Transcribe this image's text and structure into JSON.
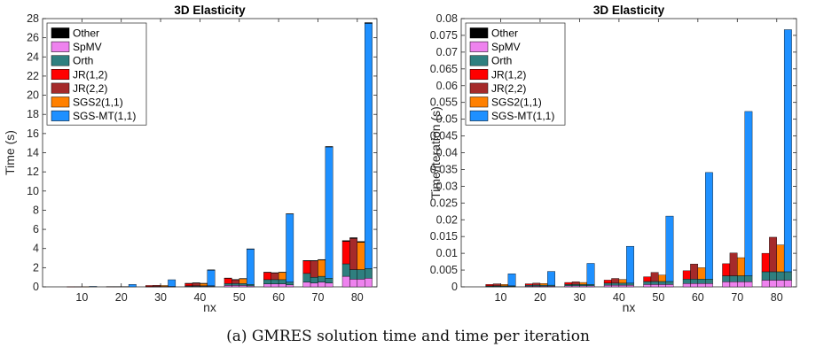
{
  "caption": "(a) GMRES solution time and time per iteration",
  "colors": {
    "Other": "#000000",
    "SpMV": "#ee82ee",
    "Orth": "#2f7f7f",
    "JR(1,2)": "#ff0000",
    "JR(2,2)": "#a52a2a",
    "SGS2(1,1)": "#ff8000",
    "SGS-MT(1,1)": "#1e90ff"
  },
  "chart_data": [
    {
      "type": "bar",
      "subtype": "stacked-grouped",
      "title": "3D Elasticity",
      "xlabel": "nx",
      "ylabel": "Time (s)",
      "ylim": [
        0,
        28
      ],
      "yticks": [
        "0",
        "2",
        "4",
        "6",
        "8",
        "10",
        "12",
        "14",
        "16",
        "18",
        "20",
        "22",
        "24",
        "26",
        "28"
      ],
      "categories": [
        "10",
        "20",
        "30",
        "40",
        "50",
        "60",
        "70",
        "80"
      ],
      "solvers": [
        "JR(1,2)",
        "JR(2,2)",
        "SGS2(1,1)",
        "SGS-MT(1,1)"
      ],
      "legend": [
        "Other",
        "SpMV",
        "Orth",
        "JR(1,2)",
        "JR(2,2)",
        "SGS2(1,1)",
        "SGS-MT(1,1)"
      ],
      "legend_position": "top-left",
      "grid": false,
      "groups": [
        {
          "x": "10",
          "bars": [
            {
              "solver": "JR(1,2)",
              "SpMV": 0.0,
              "Orth": 0.0,
              "Precond": 0.01,
              "Other": 0.0
            },
            {
              "solver": "JR(2,2)",
              "SpMV": 0.0,
              "Orth": 0.0,
              "Precond": 0.01,
              "Other": 0.0
            },
            {
              "solver": "SGS2(1,1)",
              "SpMV": 0.0,
              "Orth": 0.0,
              "Precond": 0.01,
              "Other": 0.0
            },
            {
              "solver": "SGS-MT(1,1)",
              "SpMV": 0.0,
              "Orth": 0.0,
              "Precond": 0.05,
              "Other": 0.0
            }
          ]
        },
        {
          "x": "20",
          "bars": [
            {
              "solver": "JR(1,2)",
              "SpMV": 0.0,
              "Orth": 0.0,
              "Precond": 0.03,
              "Other": 0.0
            },
            {
              "solver": "JR(2,2)",
              "SpMV": 0.0,
              "Orth": 0.0,
              "Precond": 0.03,
              "Other": 0.0
            },
            {
              "solver": "SGS2(1,1)",
              "SpMV": 0.0,
              "Orth": 0.0,
              "Precond": 0.03,
              "Other": 0.0
            },
            {
              "solver": "SGS-MT(1,1)",
              "SpMV": 0.0,
              "Orth": 0.0,
              "Precond": 0.25,
              "Other": 0.0
            }
          ]
        },
        {
          "x": "30",
          "bars": [
            {
              "solver": "JR(1,2)",
              "SpMV": 0.02,
              "Orth": 0.02,
              "Precond": 0.1,
              "Other": 0.0
            },
            {
              "solver": "JR(2,2)",
              "SpMV": 0.02,
              "Orth": 0.02,
              "Precond": 0.12,
              "Other": 0.0
            },
            {
              "solver": "SGS2(1,1)",
              "SpMV": 0.02,
              "Orth": 0.02,
              "Precond": 0.1,
              "Other": 0.0
            },
            {
              "solver": "SGS-MT(1,1)",
              "SpMV": 0.02,
              "Orth": 0.02,
              "Precond": 0.7,
              "Other": 0.0
            }
          ]
        },
        {
          "x": "40",
          "bars": [
            {
              "solver": "JR(1,2)",
              "SpMV": 0.05,
              "Orth": 0.06,
              "Precond": 0.25,
              "Other": 0.01
            },
            {
              "solver": "JR(2,2)",
              "SpMV": 0.05,
              "Orth": 0.06,
              "Precond": 0.3,
              "Other": 0.01
            },
            {
              "solver": "SGS2(1,1)",
              "SpMV": 0.05,
              "Orth": 0.06,
              "Precond": 0.25,
              "Other": 0.01
            },
            {
              "solver": "SGS-MT(1,1)",
              "SpMV": 0.05,
              "Orth": 0.06,
              "Precond": 1.65,
              "Other": 0.01
            }
          ]
        },
        {
          "x": "50",
          "bars": [
            {
              "solver": "JR(1,2)",
              "SpMV": 0.15,
              "Orth": 0.2,
              "Precond": 0.55,
              "Other": 0.02
            },
            {
              "solver": "JR(2,2)",
              "SpMV": 0.15,
              "Orth": 0.2,
              "Precond": 0.4,
              "Other": 0.02
            },
            {
              "solver": "SGS2(1,1)",
              "SpMV": 0.15,
              "Orth": 0.2,
              "Precond": 0.5,
              "Other": 0.02
            },
            {
              "solver": "SGS-MT(1,1)",
              "SpMV": 0.1,
              "Orth": 0.15,
              "Precond": 3.7,
              "Other": 0.02
            }
          ]
        },
        {
          "x": "60",
          "bars": [
            {
              "solver": "JR(1,2)",
              "SpMV": 0.3,
              "Orth": 0.45,
              "Precond": 0.75,
              "Other": 0.03
            },
            {
              "solver": "JR(2,2)",
              "SpMV": 0.3,
              "Orth": 0.45,
              "Precond": 0.7,
              "Other": 0.03
            },
            {
              "solver": "SGS2(1,1)",
              "SpMV": 0.3,
              "Orth": 0.45,
              "Precond": 0.75,
              "Other": 0.03
            },
            {
              "solver": "SGS-MT(1,1)",
              "SpMV": 0.2,
              "Orth": 0.3,
              "Precond": 7.1,
              "Other": 0.03
            }
          ]
        },
        {
          "x": "70",
          "bars": [
            {
              "solver": "JR(1,2)",
              "SpMV": 0.5,
              "Orth": 0.9,
              "Precond": 1.3,
              "Other": 0.05
            },
            {
              "solver": "JR(2,2)",
              "SpMV": 0.4,
              "Orth": 0.6,
              "Precond": 1.7,
              "Other": 0.05
            },
            {
              "solver": "SGS2(1,1)",
              "SpMV": 0.5,
              "Orth": 0.6,
              "Precond": 1.7,
              "Other": 0.05
            },
            {
              "solver": "SGS-MT(1,1)",
              "SpMV": 0.4,
              "Orth": 0.5,
              "Precond": 13.7,
              "Other": 0.05
            }
          ]
        },
        {
          "x": "80",
          "bars": [
            {
              "solver": "JR(1,2)",
              "SpMV": 1.1,
              "Orth": 1.3,
              "Precond": 2.35,
              "Other": 0.08
            },
            {
              "solver": "JR(2,2)",
              "SpMV": 0.8,
              "Orth": 1.0,
              "Precond": 3.25,
              "Other": 0.08
            },
            {
              "solver": "SGS2(1,1)",
              "SpMV": 0.8,
              "Orth": 1.0,
              "Precond": 2.85,
              "Other": 0.08
            },
            {
              "solver": "SGS-MT(1,1)",
              "SpMV": 0.9,
              "Orth": 1.0,
              "Precond": 25.6,
              "Other": 0.08
            }
          ]
        }
      ]
    },
    {
      "type": "bar",
      "subtype": "stacked-grouped",
      "title": "3D Elasticity",
      "xlabel": "nx",
      "ylabel": "Time/iteration (s)",
      "ylim": [
        0,
        0.08
      ],
      "yticks": [
        "0",
        "0.005",
        "0.01",
        "0.015",
        "0.02",
        "0.025",
        "0.03",
        "0.035",
        "0.04",
        "0.045",
        "0.05",
        "0.055",
        "0.06",
        "0.065",
        "0.07",
        "0.075",
        "0.08"
      ],
      "categories": [
        "10",
        "20",
        "30",
        "40",
        "50",
        "60",
        "70",
        "80"
      ],
      "solvers": [
        "JR(1,2)",
        "JR(2,2)",
        "SGS2(1,1)",
        "SGS-MT(1,1)"
      ],
      "legend": [
        "Other",
        "SpMV",
        "Orth",
        "JR(1,2)",
        "JR(2,2)",
        "SGS2(1,1)",
        "SGS-MT(1,1)"
      ],
      "legend_position": "top-left",
      "grid": false,
      "groups": [
        {
          "x": "10",
          "bars": [
            {
              "solver": "JR(1,2)",
              "SpMV": 0.0001,
              "Orth": 0.0002,
              "Precond": 0.0004,
              "Other": 0.0
            },
            {
              "solver": "JR(2,2)",
              "SpMV": 0.0001,
              "Orth": 0.0002,
              "Precond": 0.0006,
              "Other": 0.0
            },
            {
              "solver": "SGS2(1,1)",
              "SpMV": 0.0001,
              "Orth": 0.0002,
              "Precond": 0.0004,
              "Other": 0.0
            },
            {
              "solver": "SGS-MT(1,1)",
              "SpMV": 0.0001,
              "Orth": 0.0002,
              "Precond": 0.0036,
              "Other": 0.0
            }
          ]
        },
        {
          "x": "20",
          "bars": [
            {
              "solver": "JR(1,2)",
              "SpMV": 0.0002,
              "Orth": 0.0003,
              "Precond": 0.0004,
              "Other": 0.0
            },
            {
              "solver": "JR(2,2)",
              "SpMV": 0.0002,
              "Orth": 0.0003,
              "Precond": 0.0006,
              "Other": 0.0
            },
            {
              "solver": "SGS2(1,1)",
              "SpMV": 0.0002,
              "Orth": 0.0003,
              "Precond": 0.0005,
              "Other": 0.0
            },
            {
              "solver": "SGS-MT(1,1)",
              "SpMV": 0.0002,
              "Orth": 0.0003,
              "Precond": 0.0041,
              "Other": 0.0
            }
          ]
        },
        {
          "x": "30",
          "bars": [
            {
              "solver": "JR(1,2)",
              "SpMV": 0.0003,
              "Orth": 0.0004,
              "Precond": 0.0006,
              "Other": 0.0
            },
            {
              "solver": "JR(2,2)",
              "SpMV": 0.0003,
              "Orth": 0.0004,
              "Precond": 0.0008,
              "Other": 0.0
            },
            {
              "solver": "SGS2(1,1)",
              "SpMV": 0.0003,
              "Orth": 0.0004,
              "Precond": 0.0006,
              "Other": 0.0
            },
            {
              "solver": "SGS-MT(1,1)",
              "SpMV": 0.0003,
              "Orth": 0.0004,
              "Precond": 0.0063,
              "Other": 0.0
            }
          ]
        },
        {
          "x": "40",
          "bars": [
            {
              "solver": "JR(1,2)",
              "SpMV": 0.0005,
              "Orth": 0.0006,
              "Precond": 0.0009,
              "Other": 0.0
            },
            {
              "solver": "JR(2,2)",
              "SpMV": 0.0005,
              "Orth": 0.0006,
              "Precond": 0.0014,
              "Other": 0.0
            },
            {
              "solver": "SGS2(1,1)",
              "SpMV": 0.0005,
              "Orth": 0.0006,
              "Precond": 0.0011,
              "Other": 0.0
            },
            {
              "solver": "SGS-MT(1,1)",
              "SpMV": 0.0005,
              "Orth": 0.0006,
              "Precond": 0.011,
              "Other": 0.0
            }
          ]
        },
        {
          "x": "50",
          "bars": [
            {
              "solver": "JR(1,2)",
              "SpMV": 0.0007,
              "Orth": 0.0009,
              "Precond": 0.0014,
              "Other": 0.0
            },
            {
              "solver": "JR(2,2)",
              "SpMV": 0.0007,
              "Orth": 0.0009,
              "Precond": 0.0027,
              "Other": 0.0
            },
            {
              "solver": "SGS2(1,1)",
              "SpMV": 0.0007,
              "Orth": 0.0009,
              "Precond": 0.0019,
              "Other": 0.0
            },
            {
              "solver": "SGS-MT(1,1)",
              "SpMV": 0.0007,
              "Orth": 0.0009,
              "Precond": 0.0195,
              "Other": 0.0
            }
          ]
        },
        {
          "x": "60",
          "bars": [
            {
              "solver": "JR(1,2)",
              "SpMV": 0.001,
              "Orth": 0.0013,
              "Precond": 0.0025,
              "Other": 0.0
            },
            {
              "solver": "JR(2,2)",
              "SpMV": 0.001,
              "Orth": 0.0013,
              "Precond": 0.0045,
              "Other": 0.0
            },
            {
              "solver": "SGS2(1,1)",
              "SpMV": 0.001,
              "Orth": 0.0013,
              "Precond": 0.0034,
              "Other": 0.0
            },
            {
              "solver": "SGS-MT(1,1)",
              "SpMV": 0.001,
              "Orth": 0.0013,
              "Precond": 0.0318,
              "Other": 0.0
            }
          ]
        },
        {
          "x": "70",
          "bars": [
            {
              "solver": "JR(1,2)",
              "SpMV": 0.0015,
              "Orth": 0.0018,
              "Precond": 0.0036,
              "Other": 0.0
            },
            {
              "solver": "JR(2,2)",
              "SpMV": 0.0015,
              "Orth": 0.0018,
              "Precond": 0.0068,
              "Other": 0.0
            },
            {
              "solver": "SGS2(1,1)",
              "SpMV": 0.0015,
              "Orth": 0.0018,
              "Precond": 0.0054,
              "Other": 0.0
            },
            {
              "solver": "SGS-MT(1,1)",
              "SpMV": 0.0015,
              "Orth": 0.0018,
              "Precond": 0.049,
              "Other": 0.0
            }
          ]
        },
        {
          "x": "80",
          "bars": [
            {
              "solver": "JR(1,2)",
              "SpMV": 0.002,
              "Orth": 0.0025,
              "Precond": 0.0055,
              "Other": 0.0
            },
            {
              "solver": "JR(2,2)",
              "SpMV": 0.002,
              "Orth": 0.0025,
              "Precond": 0.0103,
              "Other": 0.0
            },
            {
              "solver": "SGS2(1,1)",
              "SpMV": 0.002,
              "Orth": 0.0025,
              "Precond": 0.008,
              "Other": 0.0
            },
            {
              "solver": "SGS-MT(1,1)",
              "SpMV": 0.002,
              "Orth": 0.0025,
              "Precond": 0.0722,
              "Other": 0.0
            }
          ]
        }
      ]
    }
  ]
}
